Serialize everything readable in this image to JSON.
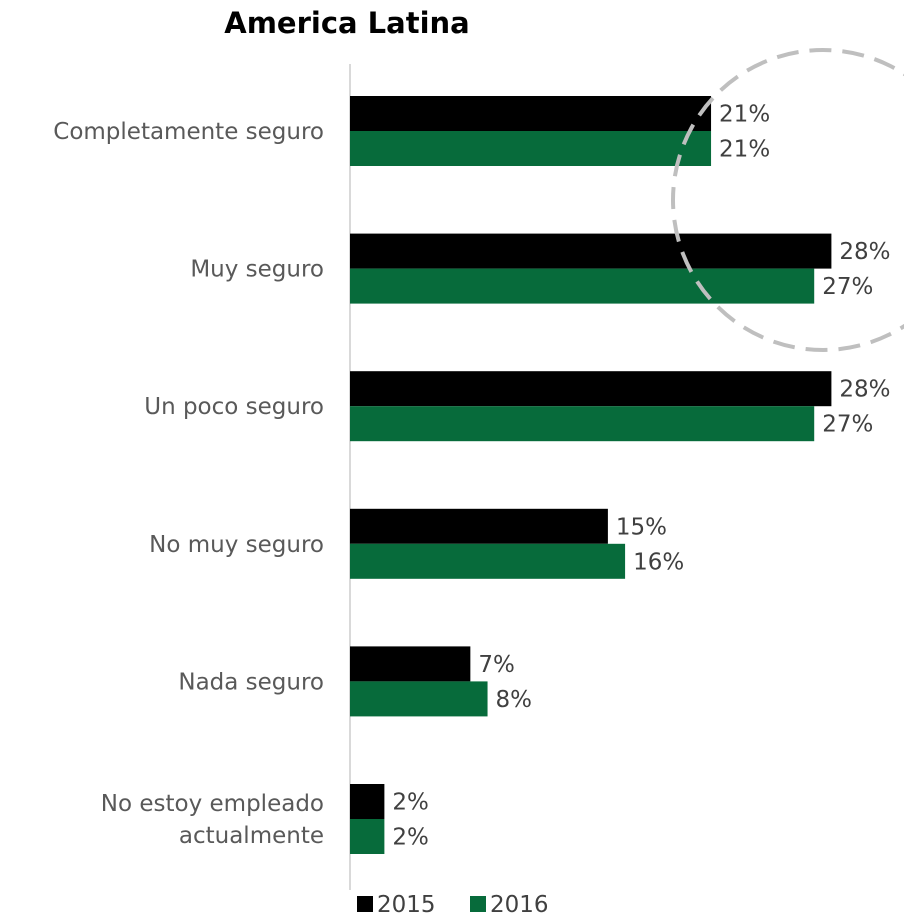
{
  "chart_data": {
    "type": "bar",
    "orientation": "horizontal",
    "title": "America Latina",
    "categories": [
      [
        "Completamente seguro"
      ],
      [
        "Muy seguro"
      ],
      [
        "Un poco seguro"
      ],
      [
        "No muy seguro"
      ],
      [
        "Nada seguro"
      ],
      [
        "No estoy empleado",
        "actualmente"
      ]
    ],
    "series": [
      {
        "name": "2015",
        "color": "#000000",
        "values": [
          21,
          28,
          28,
          15,
          7,
          2
        ],
        "labels": [
          "21%",
          "28%",
          "28%",
          "15%",
          "7%",
          "2%"
        ]
      },
      {
        "name": "2016",
        "color": "#076B3B",
        "values": [
          21,
          27,
          27,
          16,
          8,
          2
        ],
        "labels": [
          "21%",
          "27%",
          "27%",
          "16%",
          "8%",
          "2%"
        ]
      }
    ],
    "xlim": [
      0,
      28.5
    ],
    "grid": false,
    "legend_position": "bottom",
    "annotation": "dashed-circle-highlight",
    "axis_color": "#D9D9D9",
    "annotation_color": "#BFBFBF"
  }
}
